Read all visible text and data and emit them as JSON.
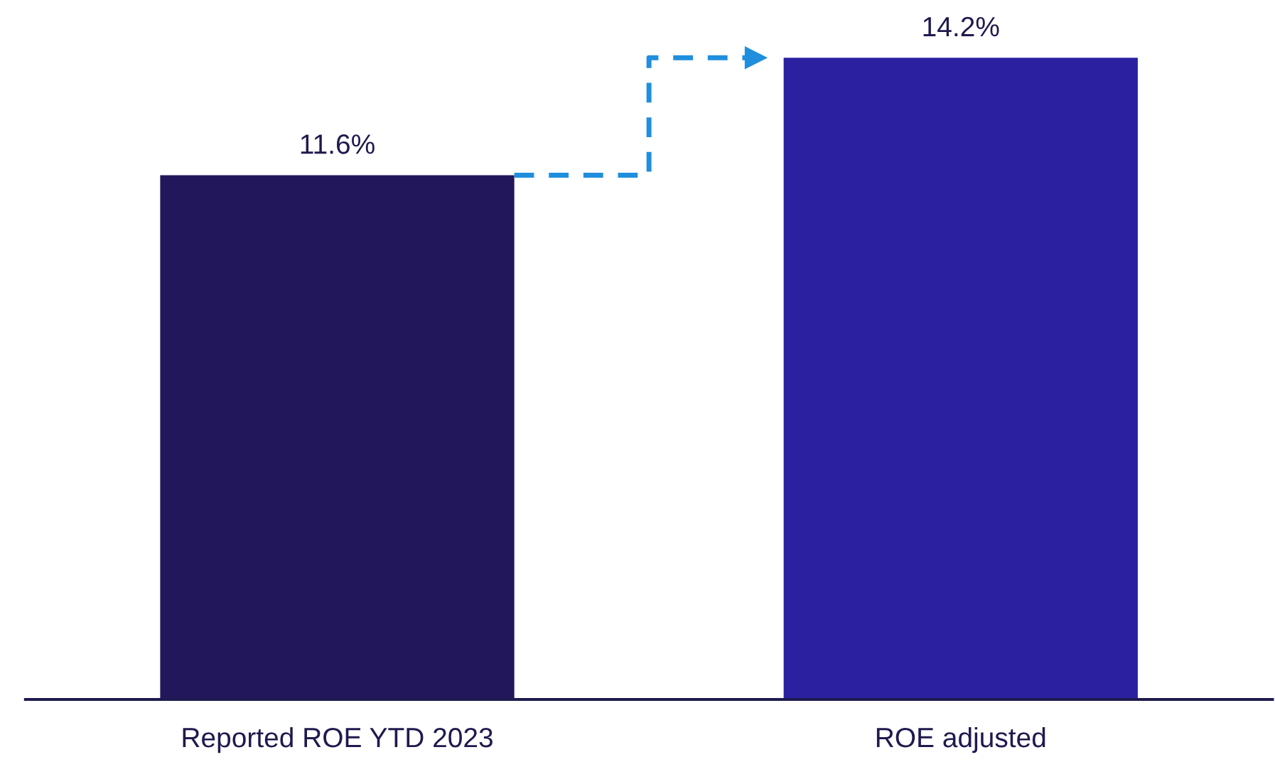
{
  "chart_data": {
    "type": "bar",
    "categories": [
      "Reported ROE YTD 2023",
      "ROE adjusted"
    ],
    "values": [
      11.6,
      14.2
    ],
    "colors": [
      "#22175a",
      "#2a20a0"
    ],
    "value_labels": [
      "11.6%",
      "14.2%"
    ],
    "grid": false,
    "legend": false
  }
}
